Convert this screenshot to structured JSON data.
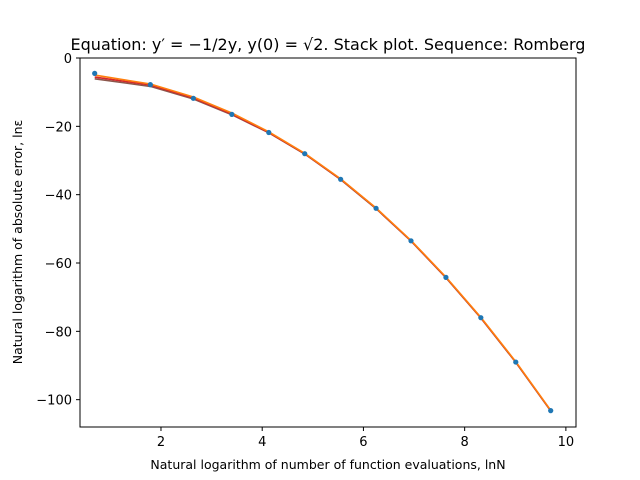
{
  "chart_data": {
    "type": "line",
    "title": "Equation: y′ = −1/2y, y(0) = √2. Stack plot. Sequence: Romberg",
    "xlabel": "Natural logarithm of number of function evaluations, lnN",
    "ylabel": "Natural logarithm of absolute error, lnε",
    "xlim": [
      0.4,
      10.2
    ],
    "ylim": [
      -108,
      0
    ],
    "xticks": [
      2,
      4,
      6,
      8,
      10
    ],
    "yticks": [
      0,
      -20,
      -40,
      -60,
      -80,
      -100
    ],
    "grid": false,
    "series": [
      {
        "color": "#1f77b4",
        "style": "points",
        "x": [
          0.69,
          1.79,
          2.64,
          3.4,
          4.13,
          4.84,
          5.55,
          6.25,
          6.94,
          7.63,
          8.32,
          9.01,
          9.7
        ],
        "y": [
          -4.5,
          -7.8,
          -11.8,
          -16.5,
          -21.8,
          -28.0,
          -35.5,
          -44.0,
          -53.5,
          -64.2,
          -76.0,
          -89.0,
          -103.2
        ]
      },
      {
        "color": "#ff7f0e",
        "style": "line",
        "x": [
          0.69,
          1.79,
          2.64,
          3.4,
          4.13,
          4.84,
          5.55,
          6.25,
          6.94,
          7.63,
          8.32,
          9.01,
          9.7
        ],
        "y": [
          -5.0,
          -7.6,
          -11.4,
          -16.1,
          -21.6,
          -27.9,
          -35.4,
          -43.9,
          -53.4,
          -64.1,
          -75.9,
          -88.9,
          -103.1
        ]
      },
      {
        "color": "#d62728",
        "style": "line",
        "x": [
          0.69,
          1.79,
          2.64,
          3.4,
          4.13,
          4.84,
          5.55,
          6.25,
          6.94,
          7.63,
          8.32,
          9.01,
          9.7
        ],
        "y": [
          -5.6,
          -7.9,
          -11.7,
          -16.4,
          -21.8,
          -28.0,
          -35.5,
          -44.0,
          -53.5,
          -64.2,
          -76.0,
          -89.0,
          -103.2
        ]
      },
      {
        "color": "#8c564b",
        "style": "line",
        "x": [
          0.69,
          1.79,
          2.64,
          3.4,
          4.13,
          4.84,
          5.55,
          6.25,
          6.94,
          7.63,
          8.32,
          9.01,
          9.7
        ],
        "y": [
          -6.1,
          -8.3,
          -12.0,
          -16.6,
          -21.9,
          -28.1,
          -35.6,
          -44.1,
          -53.6,
          -64.3,
          -76.1,
          -89.1,
          -103.3
        ]
      }
    ]
  }
}
